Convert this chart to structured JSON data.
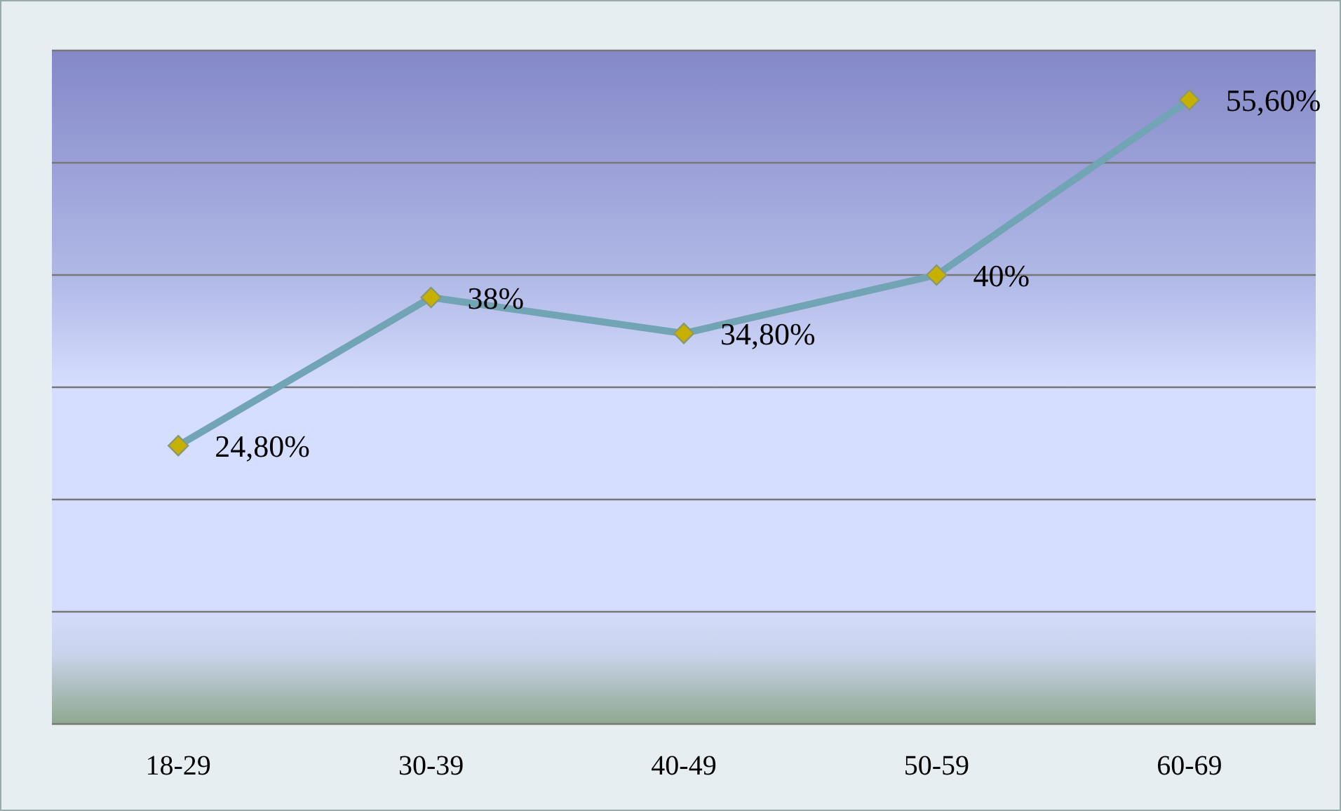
{
  "chart_data": {
    "type": "line",
    "categories": [
      "18-29",
      "30-39",
      "40-49",
      "50-59",
      "60-69"
    ],
    "series": [
      {
        "color": "#71a4b4",
        "values": [
          24.8,
          38,
          34.8,
          40,
          55.6
        ],
        "value_labels": [
          "24,80%",
          "38%",
          "34,80%",
          "40%",
          "55,60%"
        ]
      }
    ],
    "ylim": [
      0,
      60
    ],
    "yticks": [
      {
        "value": 0,
        "label": null
      },
      {
        "value": 10,
        "label": null
      },
      {
        "value": 20,
        "label": null
      },
      {
        "value": 30,
        "label": null
      },
      {
        "value": 40,
        "label": null
      },
      {
        "value": 50,
        "label": null
      },
      {
        "value": 60,
        "label": null
      }
    ],
    "tick_labels": "x",
    "grid": "y",
    "marker": "diamond",
    "legend": false
  }
}
